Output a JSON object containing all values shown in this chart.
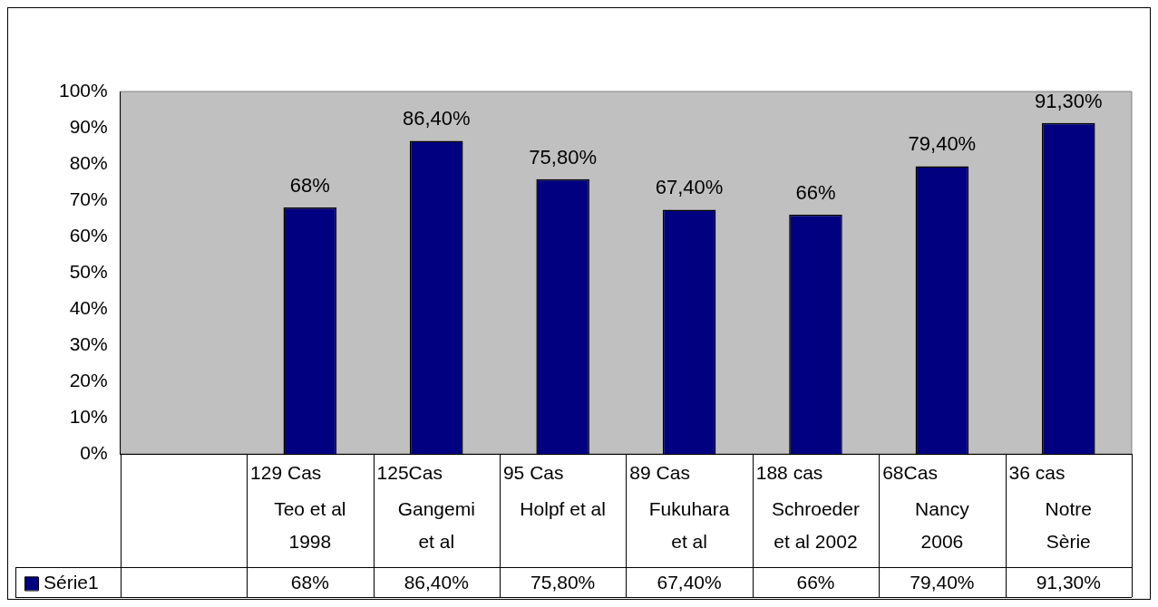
{
  "chart_data": {
    "type": "bar",
    "categories": [
      null,
      "129 Cas\nTeo et al\n1998",
      "125Cas\nGangemi\net al",
      "95 Cas\nHolpf et al",
      "89 Cas\nFukuhara\net al",
      "188 cas\nSchroeder\net al 2002",
      "68Cas\nNancy\n2006",
      "36 cas\nNotre\nSèrie"
    ],
    "series": [
      {
        "name": "Série1",
        "color": "#000080",
        "values": [
          null,
          68,
          86.4,
          75.8,
          67.4,
          66,
          79.4,
          91.3
        ],
        "value_labels": [
          null,
          "68%",
          "86,40%",
          "75,80%",
          "67,40%",
          "66%",
          "79,40%",
          "91,30%"
        ]
      }
    ],
    "ylim": [
      0,
      100
    ],
    "yticks": [
      {
        "value": 0,
        "label": "0%"
      },
      {
        "value": 10,
        "label": "10%"
      },
      {
        "value": 20,
        "label": "20%"
      },
      {
        "value": 30,
        "label": "30%"
      },
      {
        "value": 40,
        "label": "40%"
      },
      {
        "value": 50,
        "label": "50%"
      },
      {
        "value": 60,
        "label": "60%"
      },
      {
        "value": 70,
        "label": "70%"
      },
      {
        "value": 80,
        "label": "80%"
      },
      {
        "value": 90,
        "label": "90%"
      },
      {
        "value": 100,
        "label": "100%"
      }
    ],
    "grid": false,
    "legend": "bottom left"
  }
}
